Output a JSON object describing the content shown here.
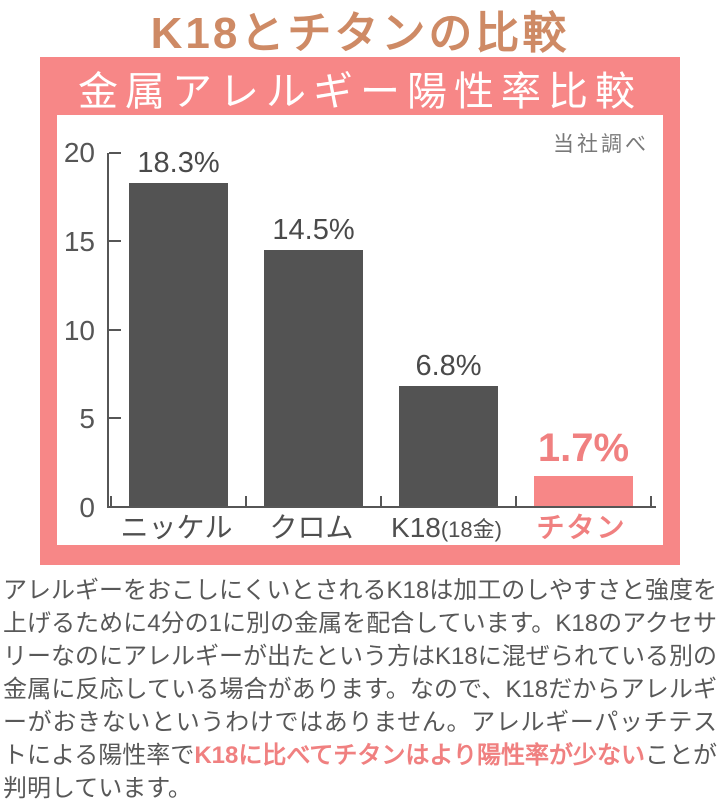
{
  "page_title": "K18とチタンの比較",
  "colors": {
    "title_orange": "#ce8a65",
    "pink": "#f78787",
    "pink_text": "#f08080",
    "bar_gray": "#535353",
    "body_text_gray": "#585858"
  },
  "chart_data": {
    "type": "bar",
    "title": "金属アレルギー陽性率比較",
    "source_note": "当社調べ",
    "categories": [
      "ニッケル",
      "クロム",
      "K18(18金)",
      "チタン"
    ],
    "categories_rich": [
      {
        "main": "ニッケル",
        "small": ""
      },
      {
        "main": "クロム",
        "small": ""
      },
      {
        "main": "K18",
        "small": "(18金)"
      },
      {
        "main": "チタン",
        "small": ""
      }
    ],
    "values": [
      18.3,
      14.5,
      6.8,
      1.7
    ],
    "value_labels": [
      "18.3%",
      "14.5%",
      "6.8%",
      "1.7%"
    ],
    "unit": "%",
    "ylim": [
      0,
      20
    ],
    "yticks": [
      0,
      5,
      10,
      15,
      20
    ],
    "highlight_index": 3,
    "grid": false,
    "legend": "none",
    "xlabel": "",
    "ylabel": ""
  },
  "paragraph": {
    "segments": [
      {
        "text": "アレルギーをおこしにくいとされるK18は加工のしやすさと強度を上げるために4分の1に別の金属を配合しています。K18のアクセサリーなのにアレルギーが出たという方はK18に混ぜられている別の金属に反応している場合があります。なので、K18だからアレルギーがおきないというわけではありません。アレルギーパッチテストによる陽性率で",
        "highlight": false
      },
      {
        "text": "K18に比べてチタンはより陽性率が少ない",
        "highlight": true
      },
      {
        "text": "ことが判明しています。",
        "highlight": false
      }
    ]
  }
}
